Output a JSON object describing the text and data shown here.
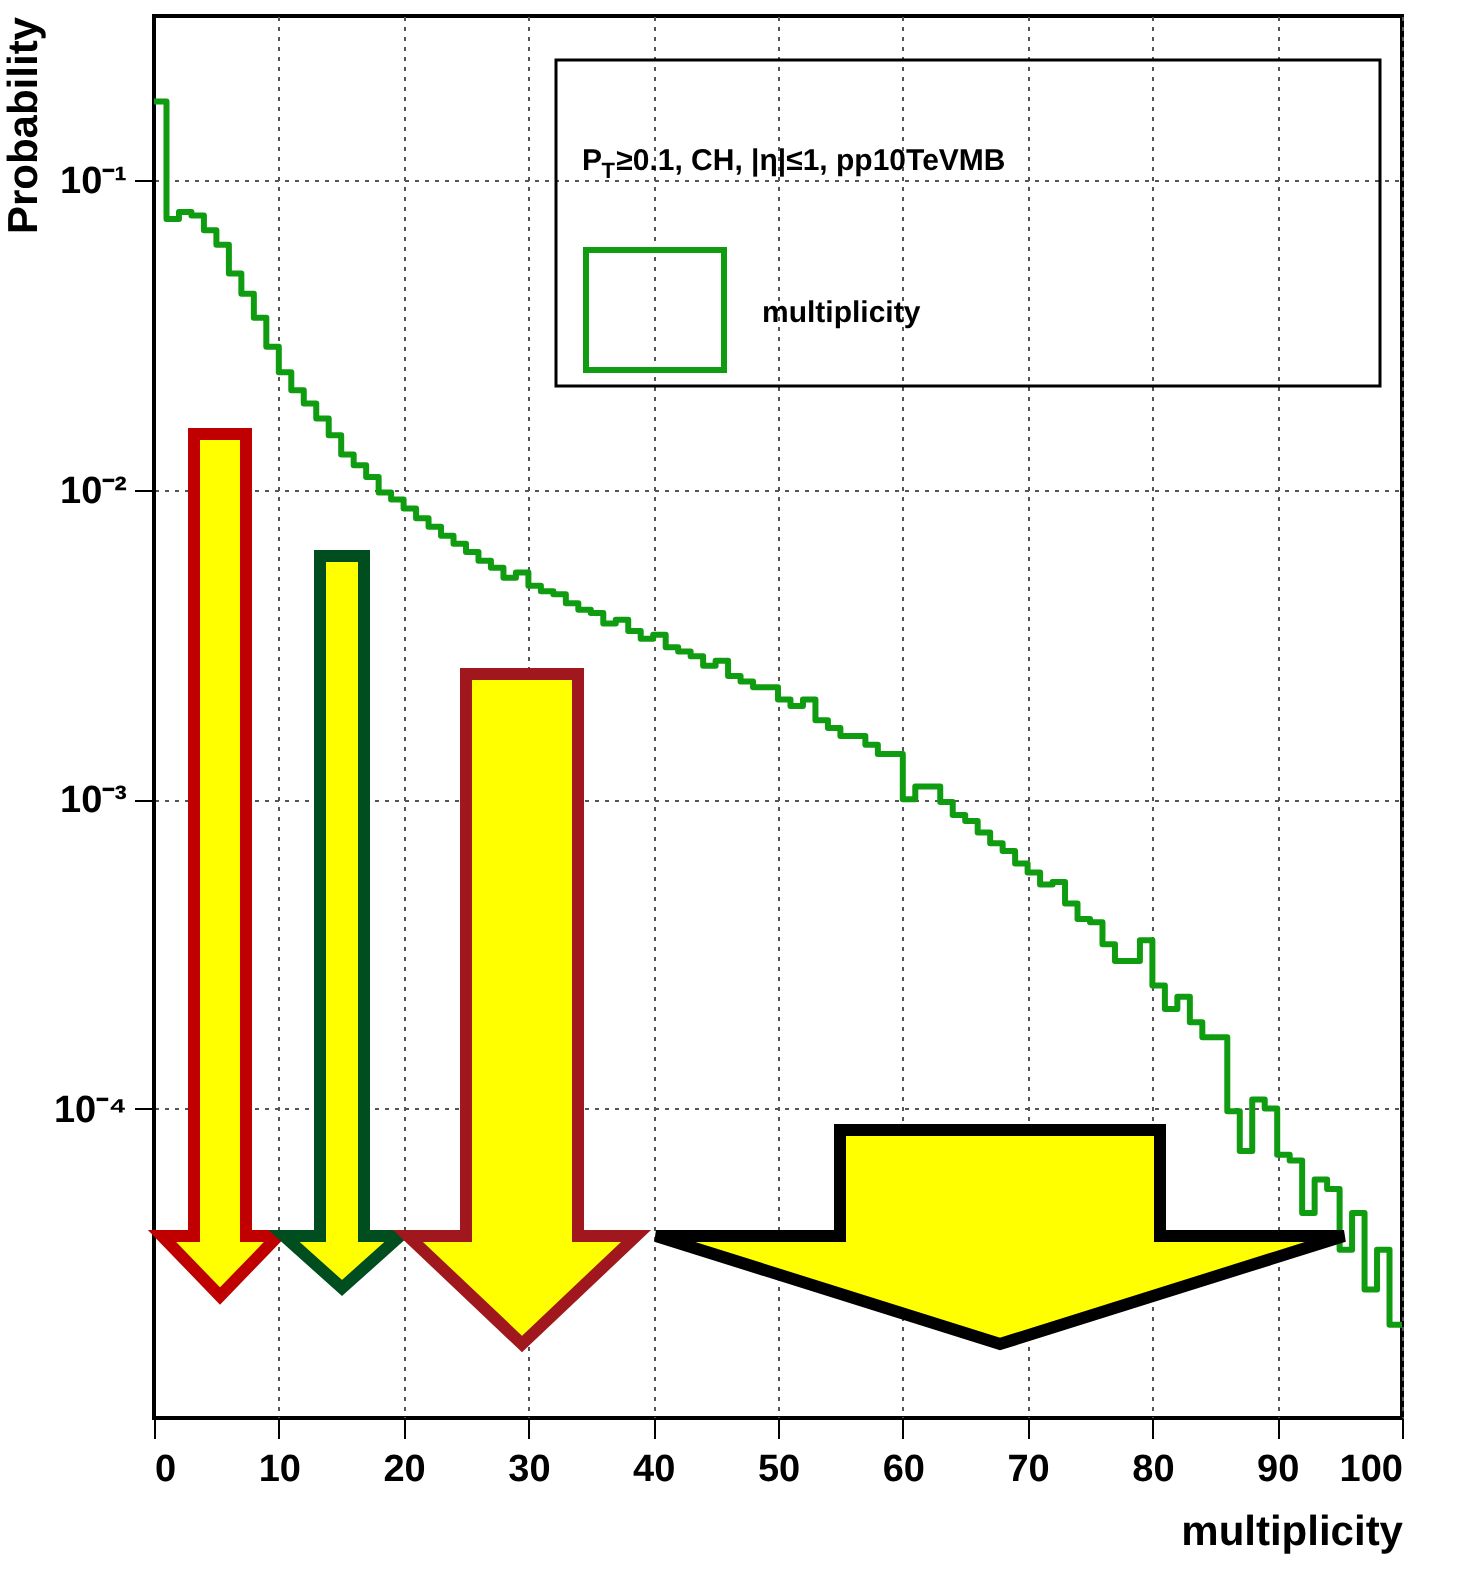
{
  "chart_data": {
    "type": "histogram",
    "xlabel": "multiplicity",
    "ylabel": "Probability",
    "legend_title": "P$_{T}$≥0.1, CH, |η|≤1, pp10TeVMB",
    "legend": "top right",
    "log": true,
    "grid": true,
    "bins": [
      0,
      1,
      2,
      3,
      4,
      5,
      6,
      7,
      8,
      9,
      10,
      11,
      12,
      13,
      14,
      15,
      16,
      17,
      18,
      19,
      20,
      21,
      22,
      23,
      24,
      25,
      26,
      27,
      28,
      29,
      30,
      31,
      32,
      33,
      34,
      35,
      36,
      37,
      38,
      39,
      40,
      41,
      42,
      43,
      44,
      45,
      46,
      47,
      48,
      49,
      50,
      51,
      52,
      53,
      54,
      55,
      56,
      57,
      58,
      59,
      60,
      61,
      62,
      63,
      64,
      65,
      66,
      67,
      68,
      69,
      70,
      71,
      72,
      73,
      74,
      75,
      76,
      77,
      78,
      79,
      80,
      81,
      82,
      83,
      84,
      85,
      86,
      87,
      88,
      89,
      90,
      91,
      92,
      93,
      94,
      95,
      96,
      97,
      98,
      99,
      100
    ],
    "series": [
      {
        "name": "multiplicity",
        "color": "#109c10",
        "values": [
          0.18,
          0.075,
          0.079,
          0.077,
          0.069,
          0.062,
          0.05,
          0.043,
          0.036,
          0.029,
          0.024,
          0.021,
          0.019,
          0.017,
          0.015,
          0.013,
          0.012,
          0.011,
          0.0098,
          0.0093,
          0.0087,
          0.0081,
          0.0076,
          0.0071,
          0.0067,
          0.0063,
          0.0059,
          0.0056,
          0.0052,
          0.0054,
          0.0049,
          0.0047,
          0.0046,
          0.0043,
          0.0041,
          0.004,
          0.0037,
          0.0038,
          0.0035,
          0.0033,
          0.0034,
          0.0031,
          0.003,
          0.0029,
          0.0027,
          0.0028,
          0.0025,
          0.0024,
          0.0023,
          0.0023,
          0.0021,
          0.002,
          0.0021,
          0.0018,
          0.0017,
          0.0016,
          0.0016,
          0.0015,
          0.0014,
          0.0014,
          0.001,
          0.0011,
          0.0011,
          0.00098,
          0.00089,
          0.00085,
          0.00078,
          0.00072,
          0.00068,
          0.00062,
          0.00058,
          0.00053,
          0.00054,
          0.00046,
          0.00041,
          0.0004,
          0.00034,
          0.0003,
          0.0003,
          0.00035,
          0.00025,
          0.00021,
          0.00023,
          0.00019,
          0.00017,
          0.00017,
          9.8e-05,
          7.3e-05,
          0.000107,
          0.0001,
          7.1e-05,
          6.8e-05,
          4.6e-05,
          5.9e-05,
          5.5e-05,
          3.5e-05,
          4.6e-05,
          2.6e-05,
          3.5e-05,
          2e-05
        ]
      }
    ],
    "xlim": [
      0,
      100
    ],
    "xticks": [
      0,
      10,
      20,
      30,
      40,
      50,
      60,
      70,
      80,
      90,
      100
    ],
    "ylim": [
      1e-05,
      0.34
    ],
    "yticks": [
      {
        "value": 0.0001,
        "label": "10⁻⁴"
      },
      {
        "value": 0.001,
        "label": "10⁻³"
      },
      {
        "value": 0.01,
        "label": "10⁻²"
      },
      {
        "value": 0.1,
        "label": "10⁻¹"
      }
    ]
  }
}
